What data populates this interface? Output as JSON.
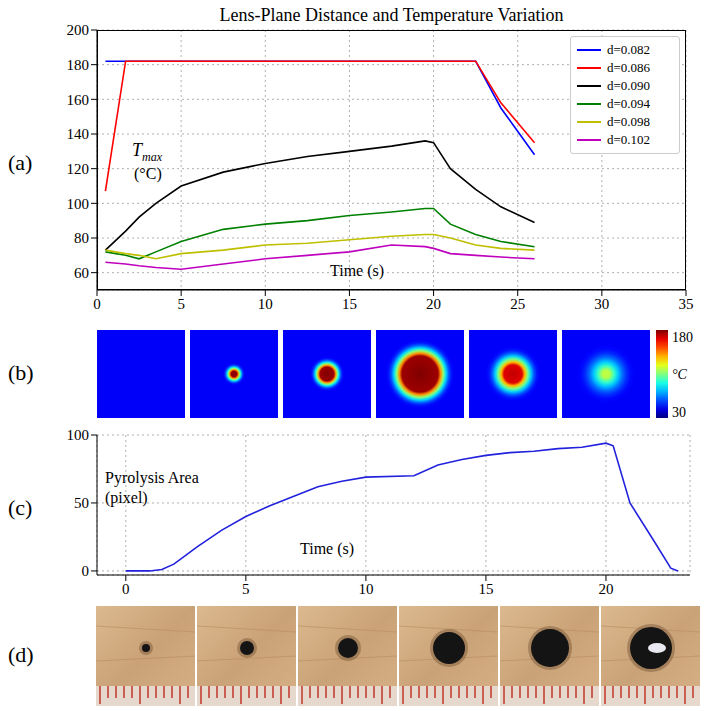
{
  "chart_data": [
    {
      "type": "line",
      "title": "Lens-Plane Distance and Temperature Variation",
      "y_label": {
        "symbol": "T",
        "subscript": "max",
        "unit": "(°C)"
      },
      "x_label": "Time (s)",
      "x": [
        0.5,
        1.7,
        2.5,
        3.5,
        5,
        7.5,
        10,
        12.5,
        15,
        17.5,
        19.5,
        20,
        21,
        22.5,
        24,
        26
      ],
      "series": [
        {
          "name": "d=0.082",
          "color": "#0000ff",
          "values": [
            182,
            182,
            182,
            182,
            182,
            182,
            182,
            182,
            182,
            182,
            182,
            182,
            182,
            182,
            155,
            128
          ]
        },
        {
          "name": "d=0.086",
          "color": "#ff0000",
          "values": [
            107,
            182,
            182,
            182,
            182,
            182,
            182,
            182,
            182,
            182,
            182,
            182,
            182,
            182,
            158,
            135
          ]
        },
        {
          "name": "d=0.090",
          "color": "#000000",
          "values": [
            73,
            84,
            92,
            100,
            110,
            118,
            123,
            127,
            130,
            133,
            136,
            135,
            120,
            108,
            98,
            89
          ]
        },
        {
          "name": "d=0.094",
          "color": "#008000",
          "values": [
            72,
            70,
            68,
            72,
            78,
            85,
            88,
            90,
            93,
            95,
            97,
            97,
            88,
            82,
            78,
            75
          ]
        },
        {
          "name": "d=0.098",
          "color": "#bfbf00",
          "values": [
            73,
            71,
            70,
            68,
            71,
            73,
            76,
            77,
            79,
            81,
            82,
            82,
            80,
            76,
            74,
            73
          ]
        },
        {
          "name": "d=0.102",
          "color": "#bf00bf",
          "values": [
            66,
            65,
            64,
            63,
            62,
            65,
            68,
            70,
            72,
            76,
            75,
            74,
            71,
            70,
            69,
            68
          ]
        }
      ],
      "xlim": [
        0,
        35
      ],
      "xticks": [
        0,
        5,
        10,
        15,
        20,
        25,
        30,
        35
      ],
      "ylim": [
        50,
        200
      ],
      "yticks": [
        60,
        80,
        100,
        120,
        140,
        160,
        180,
        200
      ],
      "grid": true,
      "legend": "upper right"
    },
    {
      "type": "line",
      "y_label": "Pyrolysis Area (pixel)",
      "x_label": "Time (s)",
      "x": [
        0,
        1,
        1.5,
        2,
        3,
        4,
        5,
        6,
        7,
        8,
        9,
        10,
        12,
        13,
        14,
        15,
        16,
        17,
        18,
        19,
        20,
        20.3,
        21,
        22,
        22.7,
        23
      ],
      "values": [
        0,
        0,
        1,
        5,
        18,
        30,
        40,
        48,
        55,
        62,
        66,
        69,
        70,
        78,
        82,
        85,
        87,
        88,
        90,
        91,
        94,
        92,
        50,
        22,
        2,
        0
      ],
      "color": "#2222dd",
      "xlim": [
        -1.2,
        23.5
      ],
      "xticks": [
        0,
        5,
        10,
        15,
        20
      ],
      "ylim": [
        -3,
        100
      ],
      "yticks": [
        0,
        50,
        100
      ],
      "grid": true
    }
  ],
  "panel_labels": [
    "(a)",
    "(b)",
    "(c)",
    "(d)"
  ],
  "thermal_images": {
    "peak_temperatures": [
      35,
      180,
      180,
      180,
      170,
      115
    ],
    "colorbar": {
      "range": [
        30,
        180
      ],
      "ticks": [
        30,
        180
      ],
      "label": "°C"
    }
  }
}
